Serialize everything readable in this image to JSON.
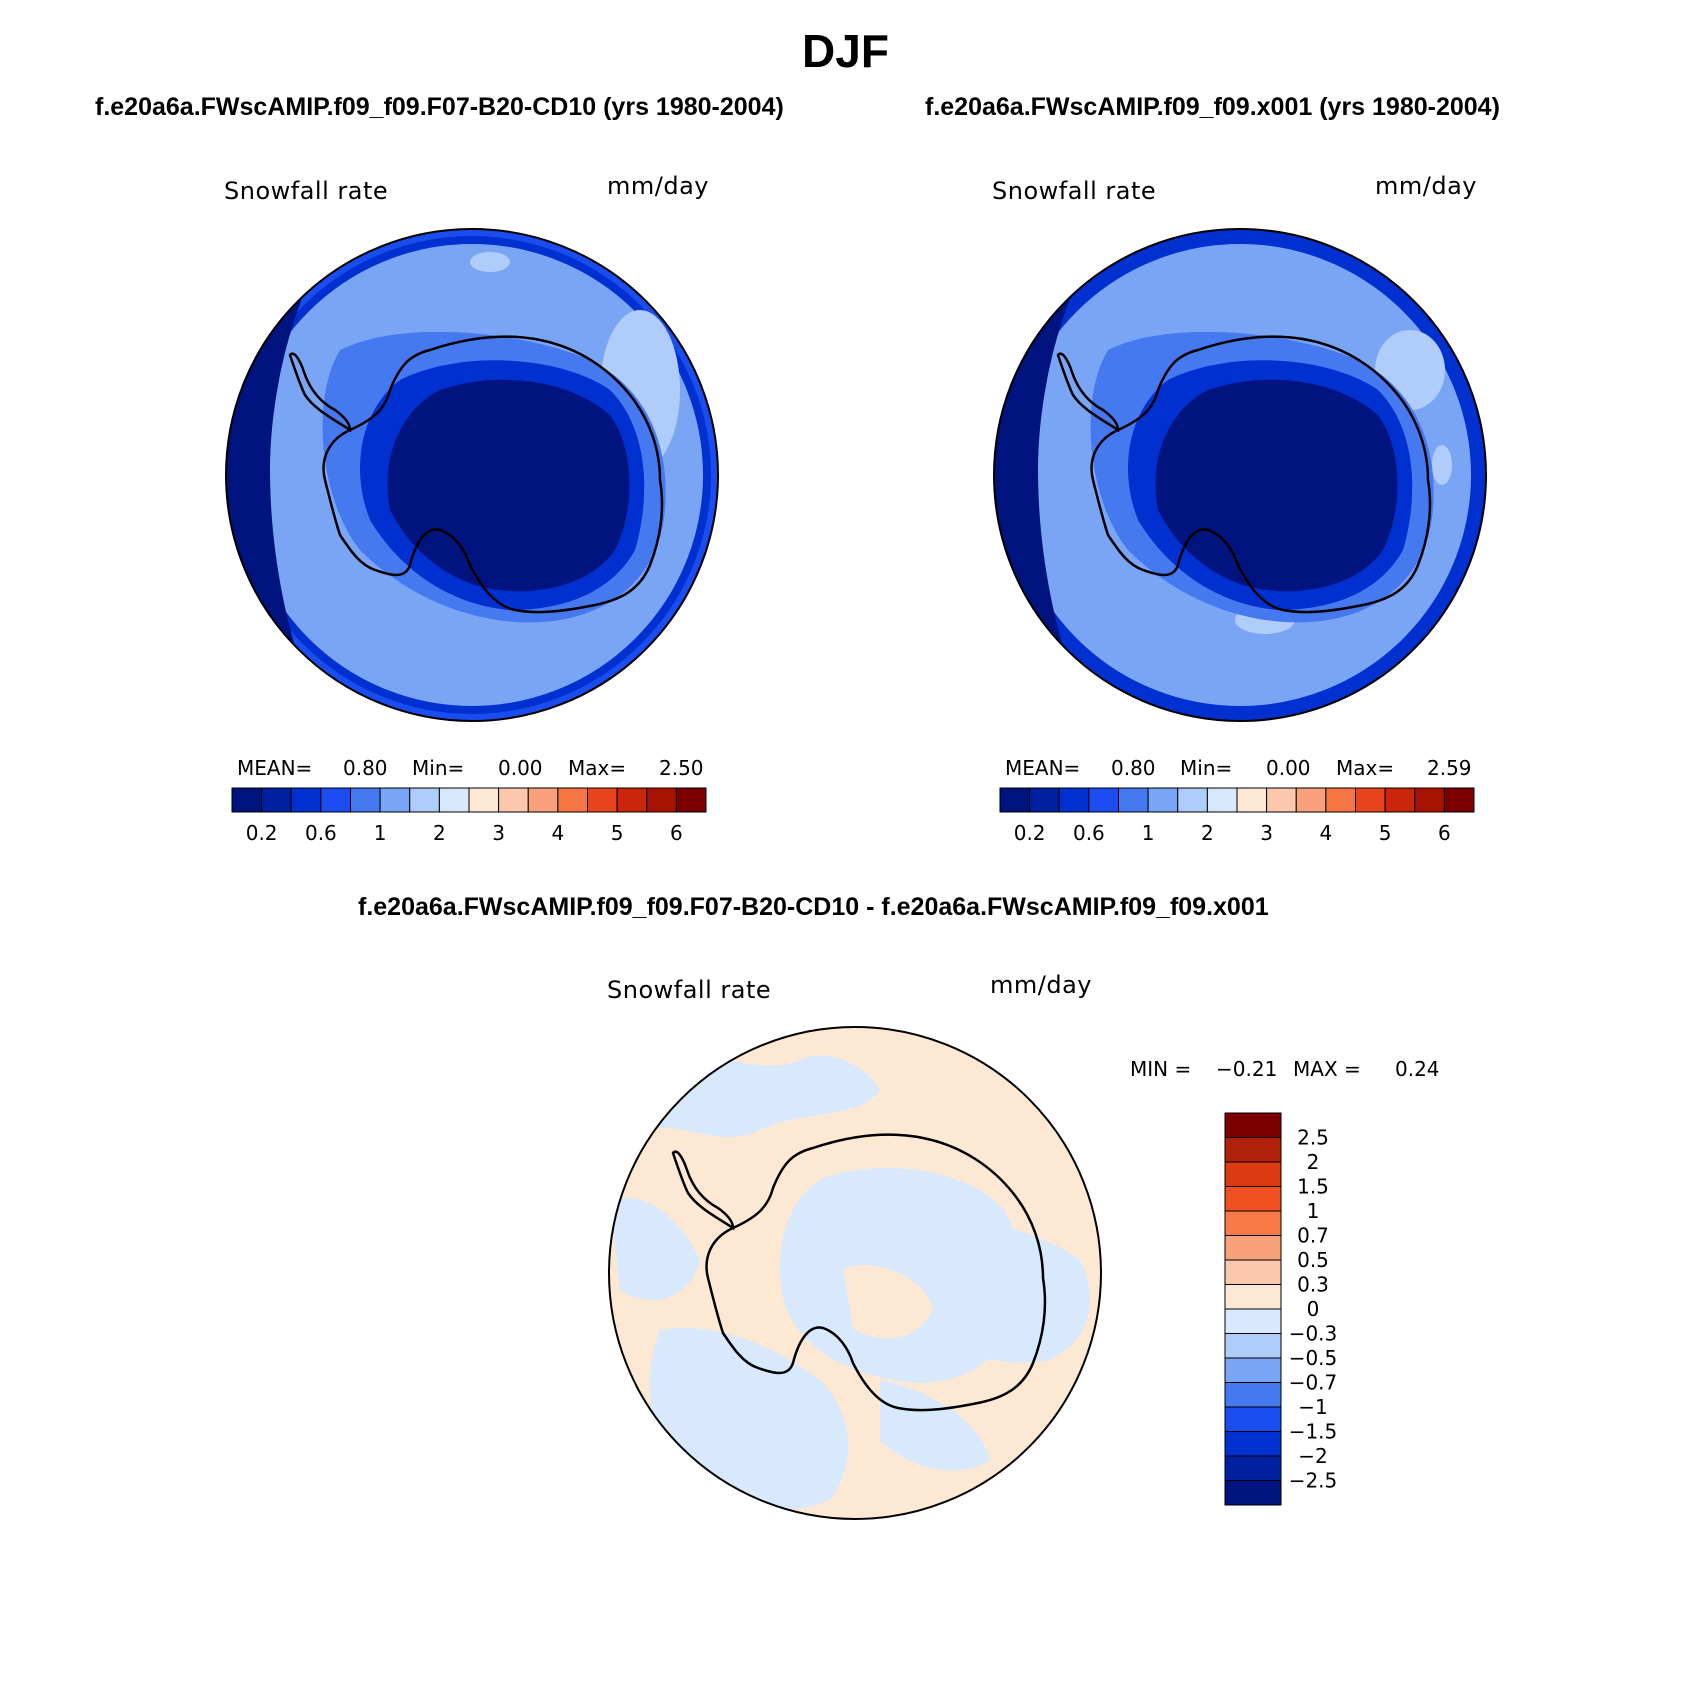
{
  "main_title": "DJF",
  "colors": {
    "scale": [
      "#00137e",
      "#00209f",
      "#0030d0",
      "#1a4df0",
      "#4678f0",
      "#7aa5f5",
      "#b0ccfa",
      "#d8e8fd",
      "#fde8d4",
      "#fcc8ad",
      "#f9a07c",
      "#f57545",
      "#e8441d",
      "#c9260a",
      "#a81202",
      "#7d0000"
    ],
    "coastline": "#000000"
  },
  "panels": [
    {
      "id": "left",
      "title": "f.e20a6a.FWscAMIP.f09_f09.F07-B20-CD10 (yrs 1980-2004)",
      "variable": "Snowfall rate",
      "units": "mm/day",
      "stats": {
        "mean_label": "MEAN=",
        "mean": "0.80",
        "min_label": "Min=",
        "min": "0.00",
        "max_label": "Max=",
        "max": "2.50"
      },
      "colorbar_ticks": [
        "0.2",
        "0.6",
        "1",
        "2",
        "3",
        "4",
        "5",
        "6"
      ]
    },
    {
      "id": "right",
      "title": "f.e20a6a.FWscAMIP.f09_f09.x001 (yrs 1980-2004)",
      "variable": "Snowfall rate",
      "units": "mm/day",
      "stats": {
        "mean_label": "MEAN=",
        "mean": "0.80",
        "min_label": "Min=",
        "min": "0.00",
        "max_label": "Max=",
        "max": "2.59"
      },
      "colorbar_ticks": [
        "0.2",
        "0.6",
        "1",
        "2",
        "3",
        "4",
        "5",
        "6"
      ]
    }
  ],
  "diff_panel": {
    "title": "f.e20a6a.FWscAMIP.f09_f09.F07-B20-CD10 - f.e20a6a.FWscAMIP.f09_f09.x001",
    "variable": "Snowfall rate",
    "units": "mm/day",
    "stats": {
      "min_label": "MIN =",
      "min": "−0.21",
      "max_label": "MAX =",
      "max": "0.24"
    },
    "colorbar_ticks": [
      "2.5",
      "2",
      "1.5",
      "1",
      "0.7",
      "0.5",
      "0.3",
      "0",
      "−0.3",
      "−0.5",
      "−0.7",
      "−1",
      "−1.5",
      "−2",
      "−2.5"
    ],
    "colorbar_colors": [
      "#7d0000",
      "#b0200a",
      "#dd3a14",
      "#f25020",
      "#f77a48",
      "#f9a07c",
      "#fcc8ad",
      "#fde8d4",
      "#d8e8fd",
      "#b0ccfa",
      "#7aa5f5",
      "#4678f0",
      "#1a4df0",
      "#0030d0",
      "#00209f",
      "#00137e"
    ]
  }
}
